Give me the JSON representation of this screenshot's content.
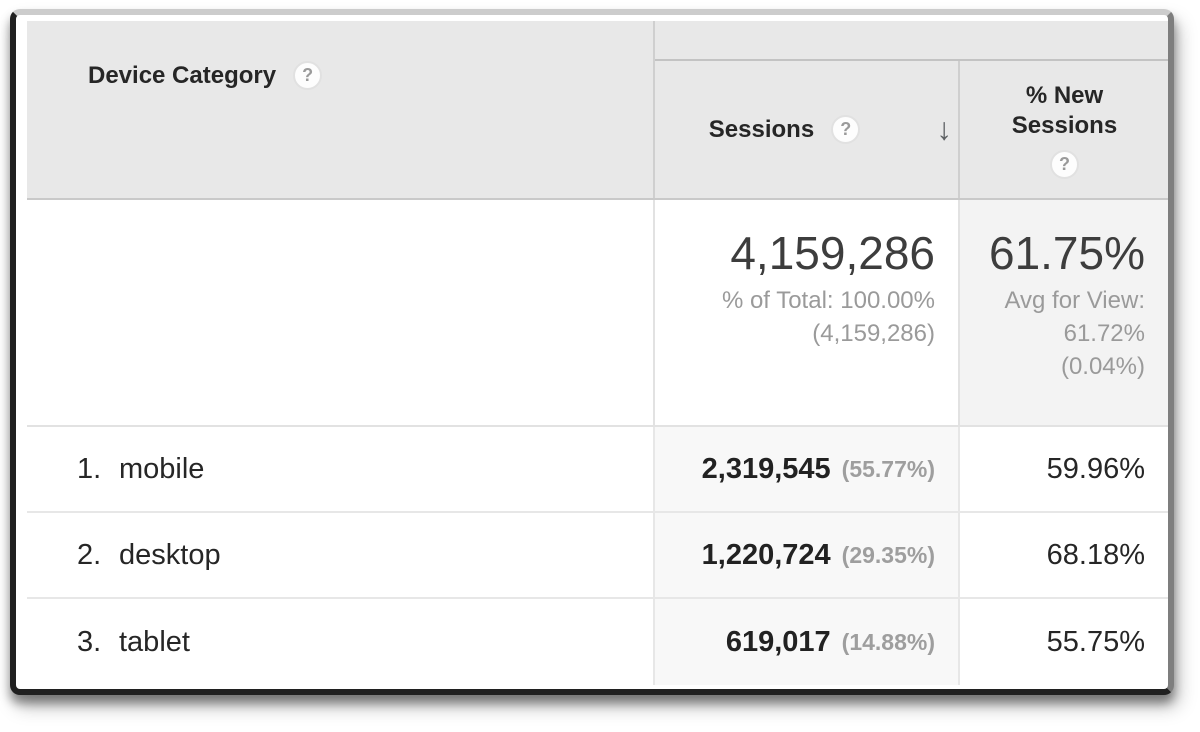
{
  "icons": {
    "question_mark": "?",
    "sort_desc": "↓"
  },
  "table": {
    "dimension_header": {
      "label": "Device Category"
    },
    "metric_headers": [
      {
        "label": "Sessions",
        "sorted": "descending"
      },
      {
        "label": "% New Sessions"
      }
    ],
    "summary": {
      "sessions": {
        "value": "4,159,286",
        "line1": "% of Total: 100.00%",
        "line2": "(4,159,286)"
      },
      "new_sessions": {
        "value": "61.75%",
        "line1": "Avg for View:",
        "line2": "61.72%",
        "line3": "(0.04%)"
      }
    },
    "rows": [
      {
        "index": "1.",
        "label": "mobile",
        "sessions": "2,319,545",
        "sessions_pct": "(55.77%)",
        "new_sessions": "59.96%"
      },
      {
        "index": "2.",
        "label": "desktop",
        "sessions": "1,220,724",
        "sessions_pct": "(29.35%)",
        "new_sessions": "68.18%"
      },
      {
        "index": "3.",
        "label": "tablet",
        "sessions": "619,017",
        "sessions_pct": "(14.88%)",
        "new_sessions": "55.75%"
      }
    ]
  },
  "colors": {
    "header_bg": "#e8e8e8",
    "sorted_col_bg": "#f8f8f8",
    "summary_secondary_bg": "#f3f3f3",
    "text_dark": "#262626",
    "text_gray": "#9a9a9a",
    "frame_border": "#202020"
  }
}
